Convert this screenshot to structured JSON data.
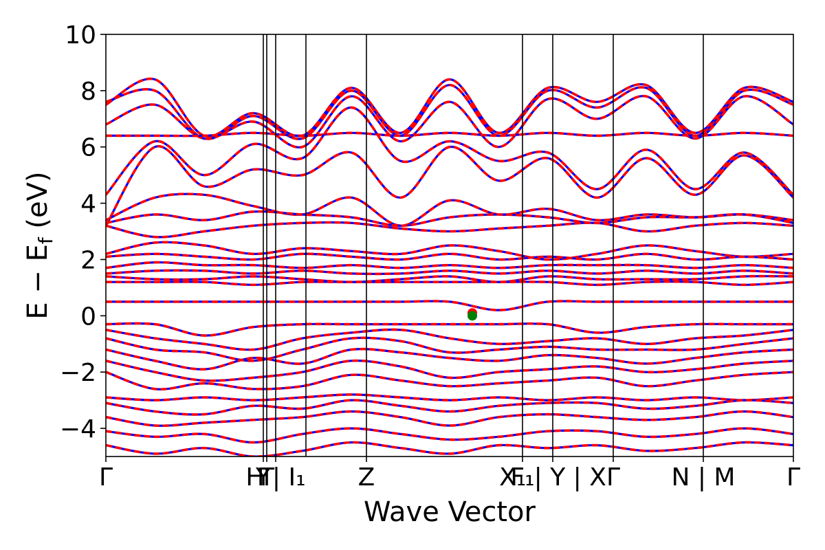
{
  "chart_data": {
    "type": "line",
    "title": "",
    "xlabel": "Wave Vector",
    "ylabel": "E − Eƒ (eV)",
    "ylabel_parts": {
      "main": "E − E",
      "sub": "f",
      "unit": "(eV)"
    },
    "ylim": [
      -5,
      10
    ],
    "yticks": [
      -4,
      -2,
      0,
      2,
      4,
      6,
      8,
      10
    ],
    "ytick_labels": [
      "−4",
      "−2",
      "0",
      "2",
      "4",
      "6",
      "8",
      "10"
    ],
    "kpath": {
      "xlim": [
        0,
        1
      ],
      "ticks": [
        {
          "pos": 0.0,
          "label": "Γ"
        },
        {
          "pos": 0.229,
          "label": "Y"
        },
        {
          "pos": 0.234,
          "label": "T"
        },
        {
          "pos": 0.247,
          "label": "H | I₁"
        },
        {
          "pos": 0.291,
          "label": ""
        },
        {
          "pos": 0.379,
          "label": "Z"
        },
        {
          "pos": 0.606,
          "label": "F₁"
        },
        {
          "pos": 0.65,
          "label": "X₁ | Y | X"
        },
        {
          "pos": 0.738,
          "label": "Γ"
        },
        {
          "pos": 0.869,
          "label": "N | M"
        },
        {
          "pos": 1.0,
          "label": "Γ"
        }
      ]
    },
    "series": [
      {
        "name": "",
        "color": "#ff0000",
        "style": "solid"
      },
      {
        "name": "",
        "color": "#0000ff",
        "style": "dashed"
      }
    ],
    "bands": [
      {
        "y": [
          7.5,
          8.4,
          6.4,
          7.2,
          6.4,
          8.1,
          6.5,
          8.4,
          6.5,
          8.1,
          7.6,
          8.2,
          6.5,
          8.1,
          7.6
        ]
      },
      {
        "y": [
          7.6,
          8.0,
          6.3,
          7.1,
          6.3,
          8.0,
          6.4,
          8.2,
          6.4,
          8.0,
          7.4,
          8.1,
          6.4,
          8.0,
          7.5
        ]
      },
      {
        "y": [
          6.8,
          7.5,
          6.3,
          6.9,
          6.0,
          7.8,
          6.2,
          7.6,
          6.0,
          7.7,
          7.0,
          7.8,
          6.3,
          7.8,
          6.8
        ]
      },
      {
        "y": [
          6.4,
          6.4,
          6.4,
          6.5,
          6.4,
          6.5,
          6.4,
          6.5,
          6.4,
          6.5,
          6.4,
          6.5,
          6.4,
          6.5,
          6.4
        ]
      },
      {
        "y": [
          4.3,
          6.2,
          5.0,
          6.1,
          5.6,
          7.4,
          5.5,
          6.2,
          5.5,
          5.8,
          4.5,
          5.9,
          4.5,
          5.8,
          4.3
        ]
      },
      {
        "y": [
          3.2,
          6.0,
          4.6,
          5.2,
          5.0,
          5.8,
          4.2,
          6.0,
          4.8,
          5.6,
          4.2,
          5.6,
          4.3,
          5.7,
          4.2
        ]
      },
      {
        "y": [
          3.4,
          4.2,
          4.3,
          3.9,
          3.6,
          4.2,
          3.2,
          4.1,
          3.6,
          3.8,
          3.4,
          3.6,
          3.5,
          3.6,
          3.4
        ]
      },
      {
        "y": [
          3.3,
          3.6,
          3.4,
          3.7,
          3.6,
          3.5,
          3.2,
          3.5,
          3.6,
          3.5,
          3.3,
          3.5,
          3.5,
          3.6,
          3.3
        ]
      },
      {
        "y": [
          3.2,
          2.8,
          3.0,
          3.2,
          3.3,
          3.3,
          3.1,
          3.0,
          3.1,
          3.2,
          3.3,
          3.0,
          3.2,
          3.3,
          3.2
        ]
      },
      {
        "y": [
          2.2,
          2.6,
          2.5,
          2.2,
          2.4,
          2.3,
          2.2,
          2.5,
          2.3,
          2.0,
          2.2,
          2.5,
          2.3,
          2.1,
          2.2
        ]
      },
      {
        "y": [
          2.1,
          2.2,
          2.1,
          2.0,
          2.2,
          2.1,
          2.0,
          2.2,
          2.0,
          2.1,
          2.0,
          2.2,
          2.0,
          2.1,
          2.0
        ]
      },
      {
        "y": [
          1.7,
          1.9,
          1.8,
          1.8,
          1.7,
          1.8,
          1.7,
          1.8,
          1.7,
          1.8,
          1.8,
          1.8,
          1.7,
          1.8,
          1.7
        ]
      },
      {
        "y": [
          1.5,
          1.6,
          1.6,
          1.5,
          1.6,
          1.5,
          1.5,
          1.6,
          1.5,
          1.6,
          1.5,
          1.6,
          1.5,
          1.6,
          1.5
        ]
      },
      {
        "y": [
          1.4,
          1.3,
          1.3,
          1.4,
          1.3,
          1.2,
          1.3,
          1.4,
          1.2,
          1.4,
          1.3,
          1.3,
          1.3,
          1.4,
          1.4
        ]
      },
      {
        "y": [
          1.2,
          1.2,
          1.2,
          1.1,
          1.2,
          1.2,
          1.2,
          1.2,
          1.2,
          1.2,
          1.1,
          1.2,
          1.2,
          1.1,
          1.2
        ]
      },
      {
        "y": [
          0.5,
          0.5,
          0.5,
          0.5,
          0.5,
          0.5,
          0.5,
          0.5,
          0.2,
          0.5,
          0.5,
          0.5,
          0.5,
          0.5,
          0.5
        ]
      },
      {
        "y": [
          -0.3,
          -0.3,
          -0.7,
          -0.4,
          -0.3,
          -0.3,
          -0.3,
          -0.3,
          -0.3,
          -0.3,
          -0.6,
          -0.4,
          -0.3,
          -0.3,
          -0.3
        ]
      },
      {
        "y": [
          -0.5,
          -0.8,
          -1.0,
          -1.2,
          -0.8,
          -0.6,
          -0.5,
          -0.8,
          -1.0,
          -0.9,
          -0.8,
          -1.0,
          -0.8,
          -0.7,
          -0.5
        ]
      },
      {
        "y": [
          -0.8,
          -1.2,
          -1.3,
          -1.6,
          -1.2,
          -0.8,
          -0.9,
          -1.3,
          -1.2,
          -1.1,
          -1.2,
          -1.2,
          -1.2,
          -1.0,
          -0.8
        ]
      },
      {
        "y": [
          -1.2,
          -1.6,
          -1.9,
          -1.5,
          -1.7,
          -1.2,
          -1.3,
          -1.5,
          -1.6,
          -1.4,
          -1.5,
          -1.7,
          -1.5,
          -1.3,
          -1.2
        ]
      },
      {
        "y": [
          -1.6,
          -2.0,
          -2.3,
          -2.2,
          -2.0,
          -1.6,
          -1.8,
          -2.2,
          -2.0,
          -1.9,
          -1.8,
          -2.0,
          -1.9,
          -1.7,
          -1.6
        ]
      },
      {
        "y": [
          -2.0,
          -2.6,
          -2.4,
          -2.6,
          -2.5,
          -2.1,
          -2.3,
          -2.5,
          -2.4,
          -2.3,
          -2.2,
          -2.5,
          -2.3,
          -2.1,
          -2.0
        ]
      },
      {
        "y": [
          -2.9,
          -3.0,
          -2.9,
          -3.0,
          -2.9,
          -2.8,
          -2.9,
          -3.0,
          -2.9,
          -3.0,
          -2.9,
          -3.0,
          -2.9,
          -3.0,
          -2.9
        ]
      },
      {
        "y": [
          -3.1,
          -3.4,
          -3.5,
          -3.2,
          -3.3,
          -3.0,
          -3.2,
          -3.4,
          -3.2,
          -3.1,
          -3.1,
          -3.3,
          -3.2,
          -3.0,
          -3.1
        ]
      },
      {
        "y": [
          -3.6,
          -3.9,
          -3.8,
          -3.7,
          -3.6,
          -3.4,
          -3.6,
          -3.9,
          -3.6,
          -3.5,
          -3.6,
          -3.7,
          -3.6,
          -3.4,
          -3.6
        ]
      },
      {
        "y": [
          -4.1,
          -4.3,
          -4.2,
          -4.5,
          -4.2,
          -4.0,
          -4.2,
          -4.4,
          -4.3,
          -4.1,
          -4.1,
          -4.3,
          -4.2,
          -4.0,
          -4.2
        ]
      },
      {
        "y": [
          -4.6,
          -4.9,
          -4.7,
          -5.0,
          -4.8,
          -4.5,
          -4.7,
          -4.9,
          -4.6,
          -4.7,
          -4.6,
          -4.8,
          -4.7,
          -4.5,
          -4.6
        ]
      }
    ],
    "markers": [
      {
        "x": 0.533,
        "y": 0.1,
        "color": "#ff0000"
      },
      {
        "x": 0.533,
        "y": 0.0,
        "color": "#008000"
      }
    ],
    "grid": false,
    "legend": "none"
  }
}
